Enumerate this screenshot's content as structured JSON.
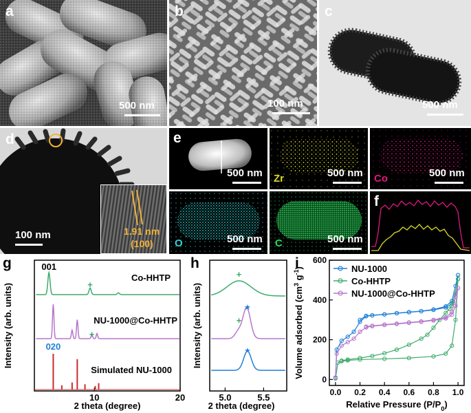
{
  "panels": {
    "a": {
      "label": "a",
      "scale": "500 nm"
    },
    "b": {
      "label": "b",
      "scale": "100 nm"
    },
    "c": {
      "label": "c",
      "scale": "500 nm"
    },
    "d": {
      "label": "d",
      "scale": "100 nm",
      "inset_spacing": "1.91 nm",
      "inset_plane": "(100)"
    },
    "e": {
      "label": "e",
      "scales": [
        "500 nm",
        "500 nm",
        "500 nm",
        "500 nm",
        "500 nm"
      ],
      "elements": [
        "Zr",
        "Co",
        "O",
        "C"
      ]
    },
    "f": {
      "label": "f"
    },
    "g": {
      "label": "g"
    },
    "h": {
      "label": "h"
    },
    "i": {
      "label": "i"
    }
  },
  "colors": {
    "co_hhtp": "#3daa6a",
    "composite": "#b577cc",
    "nu1000": "#1f7fd8",
    "simulated": "#cc2b2b",
    "zr": "#d9d92a",
    "co": "#e0187f",
    "o": "#2dd4d4",
    "c": "#2fd65a",
    "annot": "#f2b33a"
  },
  "chart_data": [
    {
      "type": "line",
      "panel": "g",
      "xlabel": "2 theta (degree)",
      "ylabel": "Intensity (arb. units)",
      "xlim": [
        3,
        20
      ],
      "xticks": [
        10,
        20
      ],
      "series": [
        {
          "name": "Co-HHTP",
          "peaks": [
            {
              "x": 4.7,
              "h": 1.0
            },
            {
              "x": 9.5,
              "h": 0.3
            },
            {
              "x": 12.8,
              "h": 0.08
            }
          ]
        },
        {
          "name": "NU-1000@Co-HHTP",
          "peaks": [
            {
              "x": 5.2,
              "h": 1.0
            },
            {
              "x": 7.4,
              "h": 0.25
            },
            {
              "x": 8.0,
              "h": 0.55
            },
            {
              "x": 9.7,
              "h": 0.12
            },
            {
              "x": 10.3,
              "h": 0.15
            }
          ]
        },
        {
          "name": "Simulated NU-1000",
          "sticks": [
            {
              "x": 5.2,
              "h": 1.0
            },
            {
              "x": 6.2,
              "h": 0.12
            },
            {
              "x": 7.4,
              "h": 0.2
            },
            {
              "x": 8.0,
              "h": 0.85
            },
            {
              "x": 8.9,
              "h": 0.15
            },
            {
              "x": 10.1,
              "h": 0.1
            },
            {
              "x": 10.5,
              "h": 0.18
            }
          ]
        }
      ],
      "annotations": {
        "peak_001": "001",
        "peak_020": "020",
        "marker": "+"
      }
    },
    {
      "type": "line",
      "panel": "h",
      "xlabel": "2 theta (degree)",
      "ylabel": "Intensity (arb. units)",
      "xlim": [
        4.8,
        5.8
      ],
      "xticks": [
        5.0,
        5.5
      ],
      "series": [
        {
          "name": "Co-HHTP",
          "peak_x": 5.18
        },
        {
          "name": "NU-1000@Co-HHTP",
          "peak_x": 5.28
        },
        {
          "name": "NU-1000",
          "peak_x": 5.29
        }
      ],
      "markers": {
        "plus": "+",
        "star": "★"
      }
    },
    {
      "type": "line",
      "panel": "i",
      "xlabel": "Relative Pressure (P/P",
      "xlabel_sub": "0",
      "xlabel_end": ")",
      "ylabel": "Volume adsorbed (cm",
      "ylabel_sup1": "3",
      "ylabel_mid": " g",
      "ylabel_sup2": "-1",
      "ylabel_end": ")",
      "xlim": [
        -0.05,
        1.05
      ],
      "ylim": [
        -30,
        600
      ],
      "xticks": [
        "0.0",
        "0.2",
        "0.4",
        "0.6",
        "0.8",
        "1.0"
      ],
      "yticks": [
        "0",
        "200",
        "400",
        "600"
      ],
      "legend": "top-left",
      "series": [
        {
          "name": "NU-1000",
          "ads": [
            [
              0,
              10
            ],
            [
              0.01,
              150
            ],
            [
              0.05,
              195
            ],
            [
              0.1,
              215
            ],
            [
              0.15,
              240
            ],
            [
              0.2,
              290
            ],
            [
              0.25,
              318
            ],
            [
              0.3,
              322
            ],
            [
              0.4,
              327
            ],
            [
              0.5,
              333
            ],
            [
              0.6,
              338
            ],
            [
              0.7,
              343
            ],
            [
              0.8,
              350
            ],
            [
              0.9,
              362
            ],
            [
              0.95,
              382
            ],
            [
              0.98,
              430
            ],
            [
              1.0,
              525
            ]
          ],
          "des": [
            [
              1.0,
              525
            ],
            [
              0.98,
              470
            ],
            [
              0.95,
              395
            ],
            [
              0.9,
              368
            ],
            [
              0.8,
              352
            ],
            [
              0.7,
              344
            ],
            [
              0.6,
              339
            ],
            [
              0.5,
              334
            ],
            [
              0.4,
              328
            ],
            [
              0.3,
              323
            ],
            [
              0.25,
              320
            ],
            [
              0.2,
              300
            ]
          ]
        },
        {
          "name": "Co-HHTP",
          "ads": [
            [
              0,
              5
            ],
            [
              0.02,
              85
            ],
            [
              0.05,
              92
            ],
            [
              0.1,
              96
            ],
            [
              0.2,
              100
            ],
            [
              0.4,
              104
            ],
            [
              0.6,
              108
            ],
            [
              0.8,
              116
            ],
            [
              0.9,
              130
            ],
            [
              0.95,
              170
            ],
            [
              0.98,
              300
            ],
            [
              1.0,
              505
            ]
          ],
          "des": [
            [
              1.0,
              505
            ],
            [
              0.98,
              440
            ],
            [
              0.96,
              390
            ],
            [
              0.95,
              370
            ],
            [
              0.93,
              355
            ],
            [
              0.9,
              335
            ],
            [
              0.85,
              300
            ],
            [
              0.8,
              260
            ],
            [
              0.75,
              225
            ],
            [
              0.7,
              205
            ],
            [
              0.6,
              175
            ],
            [
              0.5,
              150
            ],
            [
              0.4,
              132
            ],
            [
              0.3,
              118
            ],
            [
              0.2,
              108
            ],
            [
              0.1,
              100
            ],
            [
              0.05,
              95
            ]
          ]
        },
        {
          "name": "NU-1000@Co-HHTP",
          "ads": [
            [
              0,
              8
            ],
            [
              0.01,
              130
            ],
            [
              0.05,
              170
            ],
            [
              0.1,
              188
            ],
            [
              0.15,
              205
            ],
            [
              0.2,
              240
            ],
            [
              0.25,
              262
            ],
            [
              0.3,
              268
            ],
            [
              0.4,
              274
            ],
            [
              0.5,
              279
            ],
            [
              0.6,
              285
            ],
            [
              0.7,
              290
            ],
            [
              0.8,
              297
            ],
            [
              0.9,
              307
            ],
            [
              0.95,
              325
            ],
            [
              0.98,
              370
            ],
            [
              1.0,
              460
            ]
          ],
          "des": [
            [
              1.0,
              460
            ],
            [
              0.98,
              415
            ],
            [
              0.95,
              340
            ],
            [
              0.9,
              312
            ],
            [
              0.8,
              300
            ],
            [
              0.7,
              292
            ],
            [
              0.6,
              287
            ],
            [
              0.5,
              281
            ],
            [
              0.4,
              276
            ],
            [
              0.3,
              270
            ],
            [
              0.25,
              266
            ]
          ]
        }
      ]
    }
  ]
}
